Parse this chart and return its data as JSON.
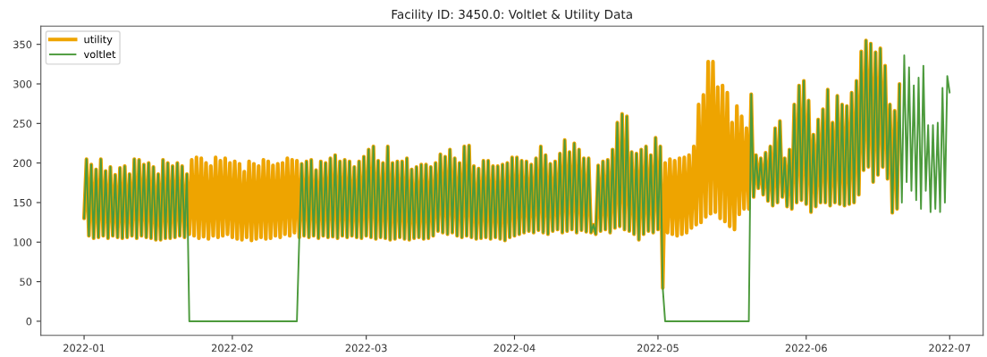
{
  "chart_data": {
    "type": "line",
    "title": "Facility ID: 3450.0: Voltlet & Utility Data",
    "x": [
      "2022-01-01T00:00",
      "2022-01-01T12:00",
      "2022-01-02T00:00",
      "2022-01-02T12:00",
      "2022-01-03T00:00",
      "2022-01-03T12:00",
      "2022-01-04T00:00",
      "2022-01-04T12:00",
      "2022-01-05T00:00",
      "2022-01-05T12:00",
      "2022-01-06T00:00",
      "2022-01-06T12:00",
      "2022-01-07T00:00",
      "2022-01-07T12:00",
      "2022-01-08T00:00",
      "2022-01-08T12:00",
      "2022-01-09T00:00",
      "2022-01-09T12:00",
      "2022-01-10T00:00",
      "2022-01-10T12:00",
      "2022-01-11T00:00",
      "2022-01-11T12:00",
      "2022-01-12T00:00",
      "2022-01-12T12:00",
      "2022-01-13T00:00",
      "2022-01-13T12:00",
      "2022-01-14T00:00",
      "2022-01-14T12:00",
      "2022-01-15T00:00",
      "2022-01-15T12:00",
      "2022-01-16T00:00",
      "2022-01-16T12:00",
      "2022-01-17T00:00",
      "2022-01-17T12:00",
      "2022-01-18T00:00",
      "2022-01-18T12:00",
      "2022-01-19T00:00",
      "2022-01-19T12:00",
      "2022-01-20T00:00",
      "2022-01-20T12:00",
      "2022-01-21T00:00",
      "2022-01-21T12:00",
      "2022-01-22T00:00",
      "2022-01-22T12:00",
      "2022-01-23T00:00",
      "2022-01-23T12:00",
      "2022-01-24T00:00",
      "2022-01-24T12:00",
      "2022-01-25T00:00",
      "2022-01-25T12:00",
      "2022-01-26T00:00",
      "2022-01-26T12:00",
      "2022-01-27T00:00",
      "2022-01-27T12:00",
      "2022-01-28T00:00",
      "2022-01-28T12:00",
      "2022-01-29T00:00",
      "2022-01-29T12:00",
      "2022-01-30T00:00",
      "2022-01-30T12:00",
      "2022-01-31T00:00",
      "2022-01-31T12:00",
      "2022-02-01T00:00",
      "2022-02-01T12:00",
      "2022-02-02T00:00",
      "2022-02-02T12:00",
      "2022-02-03T00:00",
      "2022-02-03T12:00",
      "2022-02-04T00:00",
      "2022-02-04T12:00",
      "2022-02-05T00:00",
      "2022-02-05T12:00",
      "2022-02-06T00:00",
      "2022-02-06T12:00",
      "2022-02-07T00:00",
      "2022-02-07T12:00",
      "2022-02-08T00:00",
      "2022-02-08T12:00",
      "2022-02-09T00:00",
      "2022-02-09T12:00",
      "2022-02-10T00:00",
      "2022-02-10T12:00",
      "2022-02-11T00:00",
      "2022-02-11T12:00",
      "2022-02-12T00:00",
      "2022-02-12T12:00",
      "2022-02-13T00:00",
      "2022-02-13T12:00",
      "2022-02-14T00:00",
      "2022-02-14T12:00",
      "2022-02-15T00:00",
      "2022-02-15T12:00",
      "2022-02-16T00:00",
      "2022-02-16T12:00",
      "2022-02-17T00:00",
      "2022-02-17T12:00",
      "2022-02-18T00:00",
      "2022-02-18T12:00",
      "2022-02-19T00:00",
      "2022-02-19T12:00",
      "2022-02-20T00:00",
      "2022-02-20T12:00",
      "2022-02-21T00:00",
      "2022-02-21T12:00",
      "2022-02-22T00:00",
      "2022-02-22T12:00",
      "2022-02-23T00:00",
      "2022-02-23T12:00",
      "2022-02-24T00:00",
      "2022-02-24T12:00",
      "2022-02-25T00:00",
      "2022-02-25T12:00",
      "2022-02-26T00:00",
      "2022-02-26T12:00",
      "2022-02-27T00:00",
      "2022-02-27T12:00",
      "2022-02-28T00:00",
      "2022-02-28T12:00",
      "2022-03-01T00:00",
      "2022-03-01T12:00",
      "2022-03-02T00:00",
      "2022-03-02T12:00",
      "2022-03-03T00:00",
      "2022-03-03T12:00",
      "2022-03-04T00:00",
      "2022-03-04T12:00",
      "2022-03-05T00:00",
      "2022-03-05T12:00",
      "2022-03-06T00:00",
      "2022-03-06T12:00",
      "2022-03-07T00:00",
      "2022-03-07T12:00",
      "2022-03-08T00:00",
      "2022-03-08T12:00",
      "2022-03-09T00:00",
      "2022-03-09T12:00",
      "2022-03-10T00:00",
      "2022-03-10T12:00",
      "2022-03-11T00:00",
      "2022-03-11T12:00",
      "2022-03-12T00:00",
      "2022-03-12T12:00",
      "2022-03-13T00:00",
      "2022-03-13T12:00",
      "2022-03-14T00:00",
      "2022-03-14T12:00",
      "2022-03-15T00:00",
      "2022-03-15T12:00",
      "2022-03-16T00:00",
      "2022-03-16T12:00",
      "2022-03-17T00:00",
      "2022-03-17T12:00",
      "2022-03-18T00:00",
      "2022-03-18T12:00",
      "2022-03-19T00:00",
      "2022-03-19T12:00",
      "2022-03-20T00:00",
      "2022-03-20T12:00",
      "2022-03-21T00:00",
      "2022-03-21T12:00",
      "2022-03-22T00:00",
      "2022-03-22T12:00",
      "2022-03-23T00:00",
      "2022-03-23T12:00",
      "2022-03-24T00:00",
      "2022-03-24T12:00",
      "2022-03-25T00:00",
      "2022-03-25T12:00",
      "2022-03-26T00:00",
      "2022-03-26T12:00",
      "2022-03-27T00:00",
      "2022-03-27T12:00",
      "2022-03-28T00:00",
      "2022-03-28T12:00",
      "2022-03-29T00:00",
      "2022-03-29T12:00",
      "2022-03-30T00:00",
      "2022-03-30T12:00",
      "2022-03-31T00:00",
      "2022-03-31T12:00",
      "2022-04-01T00:00",
      "2022-04-01T12:00",
      "2022-04-02T00:00",
      "2022-04-02T12:00",
      "2022-04-03T00:00",
      "2022-04-03T12:00",
      "2022-04-04T00:00",
      "2022-04-04T12:00",
      "2022-04-05T00:00",
      "2022-04-05T12:00",
      "2022-04-06T00:00",
      "2022-04-06T12:00",
      "2022-04-07T00:00",
      "2022-04-07T12:00",
      "2022-04-08T00:00",
      "2022-04-08T12:00",
      "2022-04-09T00:00",
      "2022-04-09T12:00",
      "2022-04-10T00:00",
      "2022-04-10T12:00",
      "2022-04-11T00:00",
      "2022-04-11T12:00",
      "2022-04-12T00:00",
      "2022-04-12T12:00",
      "2022-04-13T00:00",
      "2022-04-13T12:00",
      "2022-04-14T00:00",
      "2022-04-14T12:00",
      "2022-04-15T00:00",
      "2022-04-15T12:00",
      "2022-04-16T00:00",
      "2022-04-16T12:00",
      "2022-04-17T00:00",
      "2022-04-17T12:00",
      "2022-04-18T00:00",
      "2022-04-18T12:00",
      "2022-04-19T00:00",
      "2022-04-19T12:00",
      "2022-04-20T00:00",
      "2022-04-20T12:00",
      "2022-04-21T00:00",
      "2022-04-21T12:00",
      "2022-04-22T00:00",
      "2022-04-22T12:00",
      "2022-04-23T00:00",
      "2022-04-23T12:00",
      "2022-04-24T00:00",
      "2022-04-24T12:00",
      "2022-04-25T00:00",
      "2022-04-25T12:00",
      "2022-04-26T00:00",
      "2022-04-26T12:00",
      "2022-04-27T00:00",
      "2022-04-27T12:00",
      "2022-04-28T00:00",
      "2022-04-28T12:00",
      "2022-04-29T00:00",
      "2022-04-29T12:00",
      "2022-04-30T00:00",
      "2022-04-30T12:00",
      "2022-05-01T00:00",
      "2022-05-01T12:00",
      "2022-05-02T00:00",
      "2022-05-02T12:00",
      "2022-05-03T00:00",
      "2022-05-03T12:00",
      "2022-05-04T00:00",
      "2022-05-04T12:00",
      "2022-05-05T00:00",
      "2022-05-05T12:00",
      "2022-05-06T00:00",
      "2022-05-06T12:00",
      "2022-05-07T00:00",
      "2022-05-07T12:00",
      "2022-05-08T00:00",
      "2022-05-08T12:00",
      "2022-05-09T00:00",
      "2022-05-09T12:00",
      "2022-05-10T00:00",
      "2022-05-10T12:00",
      "2022-05-11T00:00",
      "2022-05-11T12:00",
      "2022-05-12T00:00",
      "2022-05-12T12:00",
      "2022-05-13T00:00",
      "2022-05-13T12:00",
      "2022-05-14T00:00",
      "2022-05-14T12:00",
      "2022-05-15T00:00",
      "2022-05-15T12:00",
      "2022-05-16T00:00",
      "2022-05-16T12:00",
      "2022-05-17T00:00",
      "2022-05-17T12:00",
      "2022-05-18T00:00",
      "2022-05-18T12:00",
      "2022-05-19T00:00",
      "2022-05-19T12:00",
      "2022-05-20T00:00",
      "2022-05-20T12:00",
      "2022-05-21T00:00",
      "2022-05-21T12:00",
      "2022-05-22T00:00",
      "2022-05-22T12:00",
      "2022-05-23T00:00",
      "2022-05-23T12:00",
      "2022-05-24T00:00",
      "2022-05-24T12:00",
      "2022-05-25T00:00",
      "2022-05-25T12:00",
      "2022-05-26T00:00",
      "2022-05-26T12:00",
      "2022-05-27T00:00",
      "2022-05-27T12:00",
      "2022-05-28T00:00",
      "2022-05-28T12:00",
      "2022-05-29T00:00",
      "2022-05-29T12:00",
      "2022-05-30T00:00",
      "2022-05-30T12:00",
      "2022-05-31T00:00",
      "2022-05-31T12:00",
      "2022-06-01T00:00",
      "2022-06-01T12:00",
      "2022-06-02T00:00",
      "2022-06-02T12:00",
      "2022-06-03T00:00",
      "2022-06-03T12:00",
      "2022-06-04T00:00",
      "2022-06-04T12:00",
      "2022-06-05T00:00",
      "2022-06-05T12:00",
      "2022-06-06T00:00",
      "2022-06-06T12:00",
      "2022-06-07T00:00",
      "2022-06-07T12:00",
      "2022-06-08T00:00",
      "2022-06-08T12:00",
      "2022-06-09T00:00",
      "2022-06-09T12:00",
      "2022-06-10T00:00",
      "2022-06-10T12:00",
      "2022-06-11T00:00",
      "2022-06-11T12:00",
      "2022-06-12T00:00",
      "2022-06-12T12:00",
      "2022-06-13T00:00",
      "2022-06-13T12:00",
      "2022-06-14T00:00",
      "2022-06-14T12:00",
      "2022-06-15T00:00",
      "2022-06-15T12:00",
      "2022-06-16T00:00",
      "2022-06-16T12:00",
      "2022-06-17T00:00",
      "2022-06-17T12:00",
      "2022-06-18T00:00",
      "2022-06-18T12:00",
      "2022-06-19T00:00",
      "2022-06-19T12:00",
      "2022-06-20T00:00",
      "2022-06-20T12:00",
      "2022-06-21T00:00",
      "2022-06-21T12:00",
      "2022-06-22T00:00",
      "2022-06-22T12:00",
      "2022-06-23T00:00",
      "2022-06-23T12:00",
      "2022-06-24T00:00",
      "2022-06-24T12:00",
      "2022-06-25T00:00",
      "2022-06-25T12:00",
      "2022-06-26T00:00",
      "2022-06-26T12:00",
      "2022-06-27T00:00",
      "2022-06-27T12:00",
      "2022-06-28T00:00",
      "2022-06-28T12:00",
      "2022-06-29T00:00",
      "2022-06-29T12:00",
      "2022-06-30T00:00",
      "2022-06-30T12:00",
      "2022-07-01T00:00"
    ],
    "series": [
      {
        "name": "utility",
        "color": "#eea400",
        "values": [
          130,
          205,
          108,
          198,
          105,
          192,
          106,
          205,
          108,
          190,
          105,
          195,
          108,
          185,
          106,
          194,
          105,
          196,
          106,
          186,
          108,
          205,
          105,
          204,
          108,
          198,
          106,
          200,
          105,
          195,
          103,
          186,
          103,
          204,
          105,
          200,
          105,
          196,
          106,
          200,
          108,
          196,
          106,
          186,
          110,
          204,
          108,
          207,
          105,
          206,
          107,
          200,
          104,
          196,
          108,
          207,
          106,
          203,
          108,
          206,
          110,
          200,
          106,
          202,
          104,
          199,
          103,
          189,
          106,
          202,
          102,
          199,
          104,
          196,
          106,
          204,
          104,
          202,
          105,
          197,
          108,
          199,
          106,
          200,
          110,
          206,
          108,
          204,
          112,
          203,
          106,
          199,
          108,
          202,
          106,
          204,
          108,
          191,
          105,
          202,
          108,
          200,
          106,
          206,
          107,
          210,
          105,
          202,
          108,
          204,
          106,
          202,
          108,
          195,
          106,
          202,
          105,
          208,
          108,
          217,
          106,
          221,
          104,
          203,
          106,
          200,
          105,
          221,
          103,
          200,
          104,
          202,
          106,
          202,
          104,
          206,
          103,
          192,
          105,
          195,
          106,
          198,
          104,
          198,
          105,
          195,
          108,
          200,
          114,
          211,
          112,
          208,
          110,
          217,
          112,
          206,
          108,
          200,
          106,
          221,
          108,
          222,
          106,
          196,
          104,
          193,
          105,
          203,
          106,
          203,
          104,
          196,
          106,
          196,
          104,
          198,
          102,
          200,
          106,
          207,
          108,
          207,
          110,
          203,
          112,
          202,
          114,
          198,
          112,
          206,
          115,
          221,
          112,
          210,
          110,
          199,
          114,
          202,
          116,
          212,
          112,
          229,
          114,
          214,
          116,
          225,
          112,
          217,
          115,
          206,
          113,
          206,
          112,
          122,
          110,
          197,
          114,
          202,
          116,
          204,
          112,
          217,
          118,
          251,
          120,
          262,
          116,
          259,
          114,
          214,
          110,
          212,
          103,
          217,
          110,
          221,
          114,
          210,
          112,
          232,
          116,
          221,
          42,
          200,
          112,
          205,
          110,
          203,
          108,
          206,
          110,
          207,
          112,
          210,
          118,
          221,
          122,
          274,
          125,
          286,
          132,
          328,
          136,
          328,
          138,
          296,
          130,
          298,
          126,
          289,
          120,
          251,
          116,
          272,
          135,
          259,
          142,
          244,
          142,
          287,
          157,
          210,
          168,
          206,
          160,
          213,
          152,
          221,
          146,
          244,
          150,
          253,
          157,
          206,
          145,
          217,
          142,
          274,
          150,
          298,
          153,
          304,
          148,
          279,
          138,
          236,
          145,
          255,
          150,
          268,
          150,
          293,
          146,
          251,
          150,
          285,
          148,
          274,
          146,
          272,
          148,
          289,
          150,
          304,
          160,
          341,
          191,
          355,
          195,
          351,
          176,
          340,
          185,
          345,
          195,
          323,
          180,
          274,
          137,
          266,
          142,
          300,
          null,
          null,
          null,
          null,
          null,
          null,
          null,
          null,
          null,
          null,
          null,
          null,
          null,
          null,
          null,
          null,
          null,
          null,
          null,
          null,
          null
        ]
      },
      {
        "name": "voltlet",
        "color": "#4c9a3c",
        "values": [
          130,
          205,
          108,
          198,
          105,
          192,
          106,
          205,
          108,
          190,
          105,
          195,
          108,
          185,
          106,
          194,
          105,
          196,
          106,
          186,
          108,
          205,
          105,
          204,
          108,
          198,
          106,
          200,
          105,
          195,
          103,
          186,
          103,
          204,
          105,
          200,
          105,
          196,
          106,
          200,
          108,
          196,
          106,
          186,
          0,
          0,
          0,
          0,
          0,
          0,
          0,
          0,
          0,
          0,
          0,
          0,
          0,
          0,
          0,
          0,
          0,
          0,
          0,
          0,
          0,
          0,
          0,
          0,
          0,
          0,
          0,
          0,
          0,
          0,
          0,
          0,
          0,
          0,
          0,
          0,
          0,
          0,
          0,
          0,
          0,
          0,
          0,
          0,
          0,
          0,
          106,
          199,
          108,
          202,
          106,
          204,
          108,
          191,
          105,
          202,
          108,
          200,
          106,
          206,
          107,
          210,
          105,
          202,
          108,
          204,
          106,
          202,
          108,
          195,
          106,
          202,
          105,
          208,
          108,
          217,
          106,
          221,
          104,
          203,
          106,
          200,
          105,
          221,
          103,
          200,
          104,
          202,
          106,
          202,
          104,
          206,
          103,
          192,
          105,
          195,
          106,
          198,
          104,
          198,
          105,
          195,
          108,
          200,
          114,
          211,
          112,
          208,
          110,
          217,
          112,
          206,
          108,
          200,
          106,
          221,
          108,
          222,
          106,
          196,
          104,
          193,
          105,
          203,
          106,
          203,
          104,
          196,
          106,
          196,
          104,
          198,
          102,
          200,
          106,
          207,
          108,
          207,
          110,
          203,
          112,
          202,
          114,
          198,
          112,
          206,
          115,
          221,
          112,
          210,
          110,
          199,
          114,
          202,
          116,
          212,
          112,
          229,
          114,
          214,
          116,
          225,
          112,
          217,
          115,
          206,
          113,
          206,
          112,
          122,
          110,
          197,
          114,
          202,
          116,
          204,
          112,
          217,
          118,
          251,
          120,
          262,
          116,
          259,
          114,
          214,
          110,
          212,
          103,
          217,
          110,
          221,
          114,
          210,
          112,
          232,
          116,
          221,
          42,
          0,
          0,
          0,
          0,
          0,
          0,
          0,
          0,
          0,
          0,
          0,
          0,
          0,
          0,
          0,
          0,
          0,
          0,
          0,
          0,
          0,
          0,
          0,
          0,
          0,
          0,
          0,
          0,
          0,
          0,
          0,
          0,
          0,
          0,
          0,
          0,
          287,
          157,
          210,
          168,
          206,
          160,
          213,
          152,
          221,
          146,
          244,
          150,
          253,
          157,
          206,
          145,
          217,
          142,
          274,
          150,
          298,
          153,
          304,
          148,
          279,
          138,
          236,
          145,
          255,
          150,
          268,
          150,
          293,
          146,
          251,
          150,
          285,
          148,
          274,
          146,
          272,
          148,
          289,
          150,
          304,
          160,
          341,
          191,
          355,
          195,
          351,
          176,
          340,
          185,
          345,
          195,
          323,
          180,
          274,
          137,
          266,
          142,
          300,
          150,
          336,
          176,
          321,
          165,
          298,
          153,
          308,
          142,
          323,
          165,
          248,
          138,
          248,
          142,
          251,
          138,
          295,
          150,
          310,
          289
        ]
      }
    ],
    "xlim": [
      "2021-12-22T23:00",
      "2022-07-08T00:00"
    ],
    "xticks": [
      {
        "value": "2022-01-01",
        "label": "2022-01"
      },
      {
        "value": "2022-02-01",
        "label": "2022-02"
      },
      {
        "value": "2022-03-01",
        "label": "2022-03"
      },
      {
        "value": "2022-04-01",
        "label": "2022-04"
      },
      {
        "value": "2022-05-01",
        "label": "2022-05"
      },
      {
        "value": "2022-06-01",
        "label": "2022-06"
      },
      {
        "value": "2022-07-01",
        "label": "2022-07"
      }
    ],
    "ylim": [
      -17.8,
      373
    ],
    "yticks": [
      0,
      50,
      100,
      150,
      200,
      250,
      300,
      350
    ],
    "legend": "top left",
    "line_style": "solid"
  }
}
